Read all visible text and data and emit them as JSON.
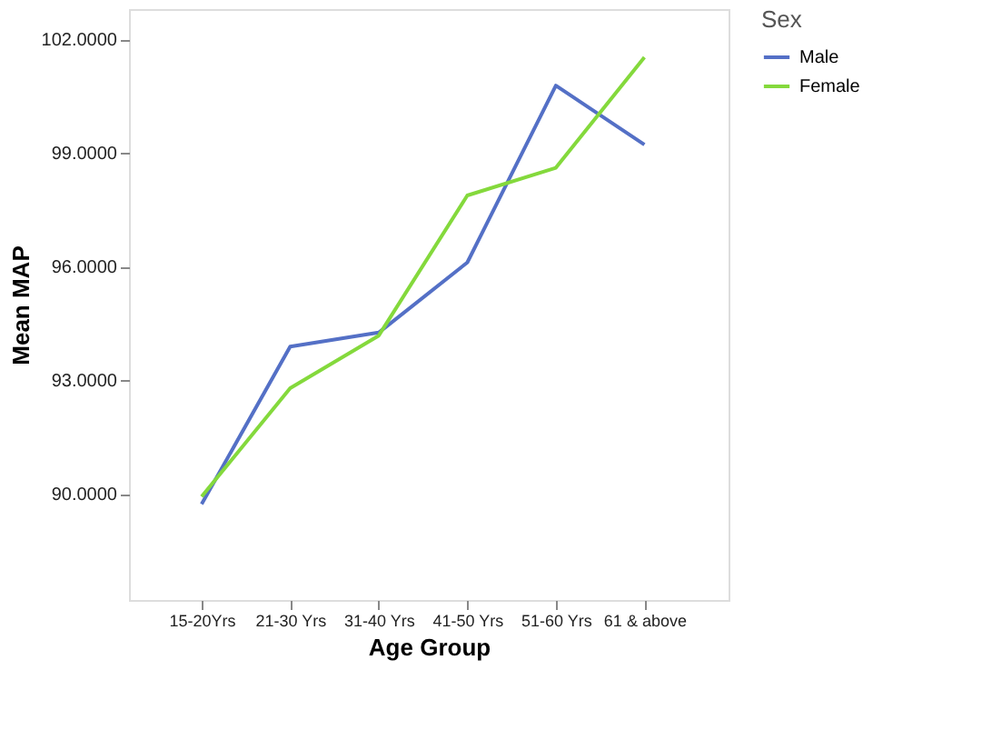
{
  "chart_data": {
    "type": "line",
    "xlabel": "Age Group",
    "ylabel": "Mean MAP",
    "legend_title": "Sex",
    "categories": [
      "15-20Yrs",
      "21-30 Yrs",
      "31-40 Yrs",
      "41-50 Yrs",
      "51-60 Yrs",
      "61 & above"
    ],
    "series": [
      {
        "name": "Male",
        "color": "#5470c6",
        "values": [
          89.73,
          93.89,
          94.26,
          96.11,
          100.78,
          99.22
        ]
      },
      {
        "name": "Female",
        "color": "#84d93c",
        "values": [
          89.93,
          92.79,
          94.18,
          97.88,
          98.61,
          101.53
        ]
      }
    ],
    "ylim": [
      87.2,
      102.8
    ],
    "yticks": [
      {
        "value": 90,
        "label": "90.0000"
      },
      {
        "value": 93,
        "label": "93.0000"
      },
      {
        "value": 96,
        "label": "96.0000"
      },
      {
        "value": 99,
        "label": "99.0000"
      },
      {
        "value": 102,
        "label": "102.0000"
      }
    ],
    "grid": false,
    "legend": "top right",
    "marker": "none",
    "line_style": "solid"
  }
}
